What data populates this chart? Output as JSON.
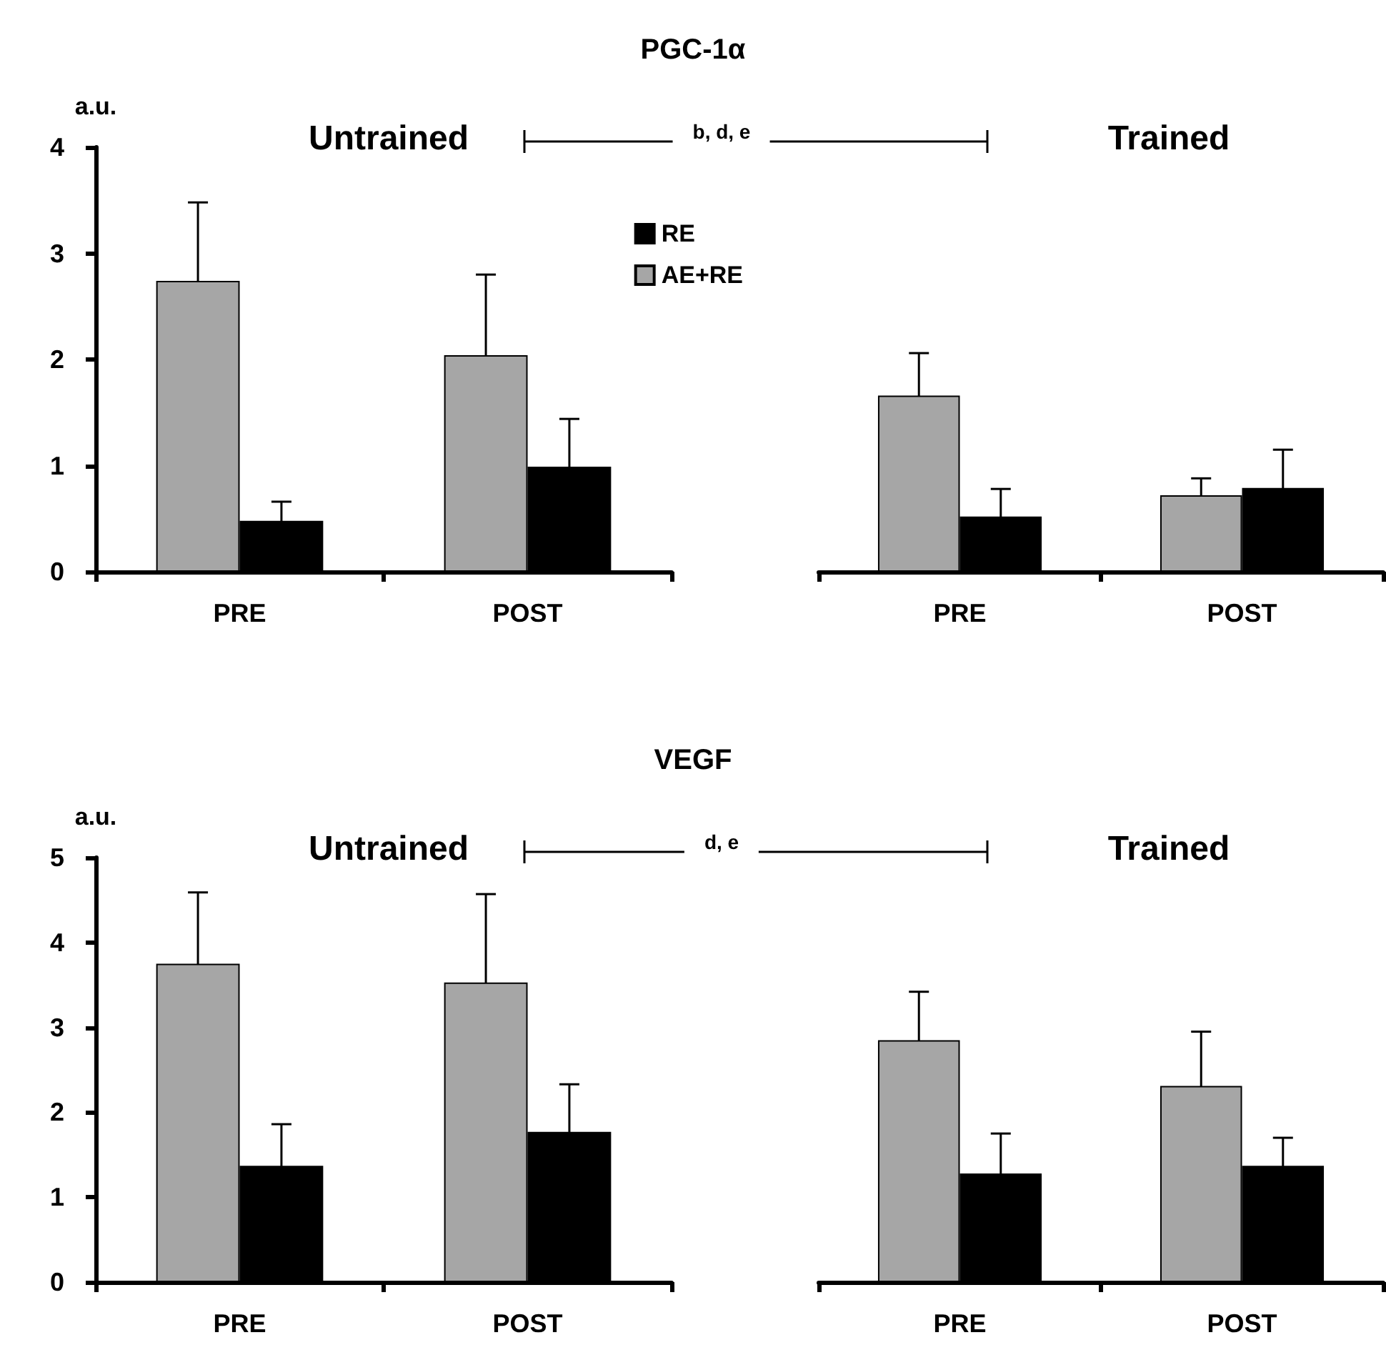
{
  "chart_data": [
    {
      "type": "bar",
      "title": "PGC-1α",
      "subtitle": "Untrained",
      "ylabel": "a.u.",
      "categories": [
        "PRE",
        "POST"
      ],
      "series": [
        {
          "name": "AE+RE",
          "color": "#a6a6a6",
          "values": [
            2.74,
            2.04
          ],
          "errors": [
            0.74,
            0.76
          ]
        },
        {
          "name": "RE",
          "color": "#000000",
          "values": [
            0.48,
            0.99
          ],
          "errors": [
            0.18,
            0.45
          ]
        }
      ],
      "ylim": [
        0,
        4
      ],
      "yticks": [
        0,
        1,
        2,
        3,
        4
      ],
      "legend": "top right",
      "annotations": [
        "b, d, e"
      ]
    },
    {
      "type": "bar",
      "subtitle": "Trained",
      "categories": [
        "PRE",
        "POST"
      ],
      "series": [
        {
          "color": "#a6a6a6",
          "values": [
            1.66,
            0.72
          ],
          "errors": [
            0.4,
            0.16
          ]
        },
        {
          "color": "#000000",
          "values": [
            0.52,
            0.79
          ],
          "errors": [
            0.26,
            0.36
          ]
        }
      ],
      "ylim": [
        0,
        4
      ],
      "yticks": [
        0,
        1,
        2,
        3,
        4
      ],
      "tick_labels": "x"
    },
    {
      "type": "bar",
      "title": "VEGF",
      "subtitle": "Untrained",
      "ylabel": "a.u.",
      "categories": [
        "PRE",
        "POST"
      ],
      "series": [
        {
          "color": "#a6a6a6",
          "values": [
            3.75,
            3.53
          ],
          "errors": [
            0.84,
            1.04
          ]
        },
        {
          "color": "#000000",
          "values": [
            1.37,
            1.77
          ],
          "errors": [
            0.49,
            0.56
          ]
        }
      ],
      "ylim": [
        0,
        5
      ],
      "yticks": [
        0,
        1,
        2,
        3,
        4,
        5
      ],
      "annotations": [
        "d, e"
      ]
    },
    {
      "type": "bar",
      "subtitle": "Trained",
      "categories": [
        "PRE",
        "POST"
      ],
      "series": [
        {
          "color": "#a6a6a6",
          "values": [
            2.85,
            2.31
          ],
          "errors": [
            0.57,
            0.64
          ]
        },
        {
          "color": "#000000",
          "values": [
            1.28,
            1.37
          ],
          "errors": [
            0.47,
            0.33
          ]
        }
      ],
      "ylim": [
        0,
        5
      ],
      "yticks": [
        0,
        1,
        2,
        3,
        4,
        5
      ],
      "tick_labels": "x"
    }
  ]
}
